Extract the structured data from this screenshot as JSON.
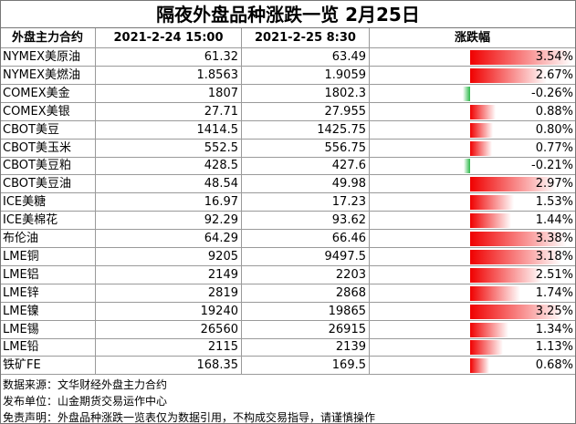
{
  "title": "隔夜外盘品种涨跌一览 2月25日",
  "table": {
    "headers": [
      "外盘主力合约",
      "2021-2-24 15:00",
      "2021-2-25 8:30",
      "涨跌幅"
    ],
    "rows": [
      {
        "name": "NYMEX美原油",
        "prev": "61.32",
        "curr": "63.49",
        "change": {
          "value": 3.54,
          "label": "3.54%"
        }
      },
      {
        "name": "NYMEX美燃油",
        "prev": "1.8563",
        "curr": "1.9059",
        "change": {
          "value": 2.67,
          "label": "2.67%"
        }
      },
      {
        "name": "COMEX美金",
        "prev": "1807",
        "curr": "1802.3",
        "change": {
          "value": -0.26,
          "label": "-0.26%"
        }
      },
      {
        "name": "COMEX美银",
        "prev": "27.71",
        "curr": "27.955",
        "change": {
          "value": 0.88,
          "label": "0.88%"
        }
      },
      {
        "name": "CBOT美豆",
        "prev": "1414.5",
        "curr": "1425.75",
        "change": {
          "value": 0.8,
          "label": "0.80%"
        }
      },
      {
        "name": "CBOT美玉米",
        "prev": "552.5",
        "curr": "556.75",
        "change": {
          "value": 0.77,
          "label": "0.77%"
        }
      },
      {
        "name": "CBOT美豆粕",
        "prev": "428.5",
        "curr": "427.6",
        "change": {
          "value": -0.21,
          "label": "-0.21%"
        }
      },
      {
        "name": "CBOT美豆油",
        "prev": "48.54",
        "curr": "49.98",
        "change": {
          "value": 2.97,
          "label": "2.97%"
        }
      },
      {
        "name": "ICE美糖",
        "prev": "16.97",
        "curr": "17.23",
        "change": {
          "value": 1.53,
          "label": "1.53%"
        }
      },
      {
        "name": "ICE美棉花",
        "prev": "92.29",
        "curr": "93.62",
        "change": {
          "value": 1.44,
          "label": "1.44%"
        }
      },
      {
        "name": "布伦油",
        "prev": "64.29",
        "curr": "66.46",
        "change": {
          "value": 3.38,
          "label": "3.38%"
        }
      },
      {
        "name": "LME铜",
        "prev": "9205",
        "curr": "9497.5",
        "change": {
          "value": 3.18,
          "label": "3.18%"
        }
      },
      {
        "name": "LME铝",
        "prev": "2149",
        "curr": "2203",
        "change": {
          "value": 2.51,
          "label": "2.51%"
        }
      },
      {
        "name": "LME锌",
        "prev": "2819",
        "curr": "2868",
        "change": {
          "value": 1.74,
          "label": "1.74%"
        }
      },
      {
        "name": "LME镍",
        "prev": "19240",
        "curr": "19865",
        "change": {
          "value": 3.25,
          "label": "3.25%"
        }
      },
      {
        "name": "LME锡",
        "prev": "26560",
        "curr": "26915",
        "change": {
          "value": 1.34,
          "label": "1.34%"
        }
      },
      {
        "name": "LME铅",
        "prev": "2115",
        "curr": "2139",
        "change": {
          "value": 1.13,
          "label": "1.13%"
        }
      },
      {
        "name": "铁矿FE",
        "prev": "168.35",
        "curr": "169.5",
        "change": {
          "value": 0.68,
          "label": "0.68%"
        }
      }
    ]
  },
  "footer": [
    "数据来源：文华财经外盘主力合约",
    "发布单位：山金期货交易运作中心",
    "免责声明：外盘品种涨跌一览表仅为数据引用，不构成交易指导，请谨慎操作"
  ]
}
